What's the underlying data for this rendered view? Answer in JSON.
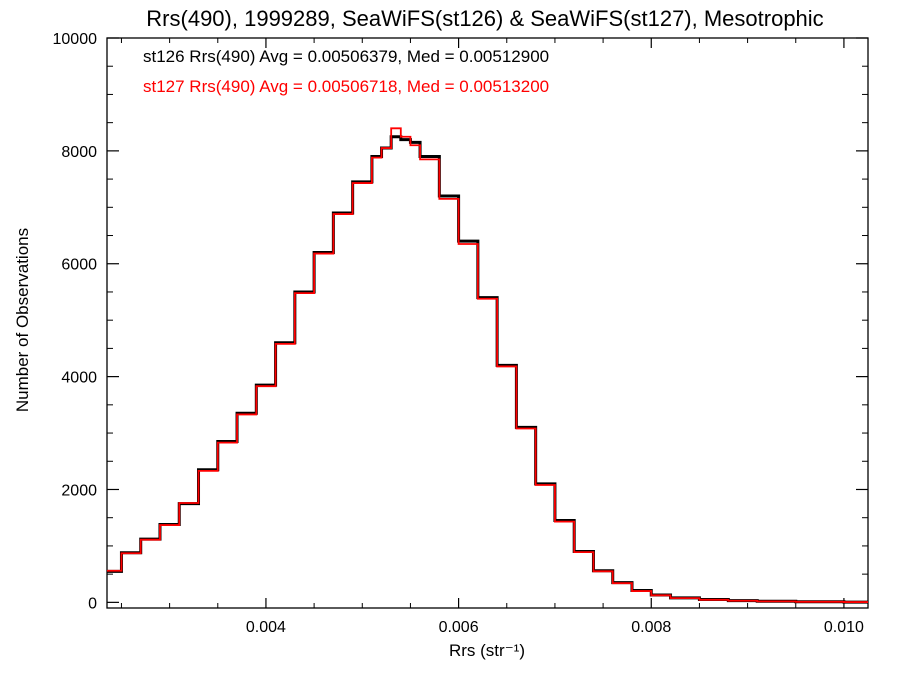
{
  "chart_data": {
    "type": "line",
    "title": "Rrs(490), 1999289, SeaWiFS(st126) & SeaWiFS(st127), Mesotrophic",
    "xlabel": "Rrs (str⁻¹)",
    "ylabel": "Number of Observations",
    "xlim": [
      0.00235,
      0.01025
    ],
    "ylim": [
      -100,
      10000
    ],
    "x_ticks": [
      0.004,
      0.006,
      0.008,
      0.01
    ],
    "x_tick_labels": [
      "0.004",
      "0.006",
      "0.008",
      "0.010"
    ],
    "y_ticks": [
      0,
      2000,
      4000,
      6000,
      8000,
      10000
    ],
    "y_tick_labels": [
      "0",
      "2000",
      "4000",
      "6000",
      "8000",
      "10000"
    ],
    "grid": false,
    "annotations": [
      {
        "text": "st126 Rrs(490) Avg = 0.00506379, Med = 0.00512900",
        "color": "#000000"
      },
      {
        "text": "st127 Rrs(490) Avg = 0.00506718, Med = 0.00513200",
        "color": "#ff0000"
      }
    ],
    "series": [
      {
        "color": "#000000",
        "x": [
          0.00235,
          0.0025,
          0.0027,
          0.0029,
          0.0031,
          0.0033,
          0.0035,
          0.0037,
          0.0039,
          0.0041,
          0.0043,
          0.0045,
          0.0047,
          0.0049,
          0.0051,
          0.0052,
          0.0053,
          0.0054,
          0.0055,
          0.0056,
          0.0058,
          0.006,
          0.0062,
          0.0064,
          0.0066,
          0.0068,
          0.007,
          0.0072,
          0.0074,
          0.0076,
          0.0078,
          0.008,
          0.0082,
          0.0085,
          0.0088,
          0.0091,
          0.0095,
          0.01,
          0.01025
        ],
        "y": [
          550,
          880,
          1120,
          1380,
          1750,
          2350,
          2850,
          3350,
          3850,
          4600,
          5500,
          6200,
          6900,
          7450,
          7900,
          8050,
          8250,
          8200,
          8150,
          7900,
          7200,
          6400,
          5400,
          4200,
          3100,
          2100,
          1450,
          900,
          560,
          350,
          210,
          130,
          80,
          50,
          30,
          20,
          10,
          5,
          5
        ]
      },
      {
        "color": "#ff0000",
        "x": [
          0.00235,
          0.0025,
          0.0027,
          0.0029,
          0.0031,
          0.0033,
          0.0035,
          0.0037,
          0.0039,
          0.0041,
          0.0043,
          0.0045,
          0.0047,
          0.0049,
          0.0051,
          0.0052,
          0.0053,
          0.0054,
          0.0055,
          0.0056,
          0.0058,
          0.006,
          0.0062,
          0.0064,
          0.0066,
          0.0068,
          0.007,
          0.0072,
          0.0074,
          0.0076,
          0.0078,
          0.008,
          0.0082,
          0.0085,
          0.0088,
          0.0091,
          0.0095,
          0.01,
          0.01025
        ],
        "y": [
          560,
          870,
          1110,
          1370,
          1760,
          2330,
          2830,
          3330,
          3830,
          4580,
          5480,
          6180,
          6880,
          7430,
          7880,
          8050,
          8400,
          8250,
          8100,
          7850,
          7150,
          6350,
          5380,
          4180,
          3080,
          2080,
          1430,
          890,
          550,
          340,
          200,
          125,
          75,
          45,
          28,
          18,
          10,
          5,
          5
        ]
      }
    ]
  }
}
